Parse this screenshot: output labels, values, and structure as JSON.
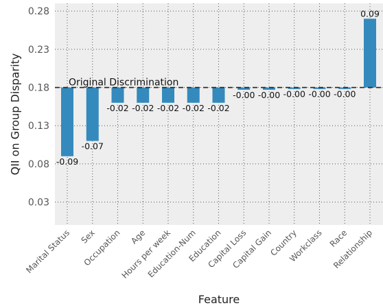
{
  "chart_data": {
    "type": "bar",
    "title": "",
    "xlabel": "Feature",
    "ylabel": "QII on Group Disparity",
    "categories": [
      "Marital Status",
      "Sex",
      "Occupation",
      "Age",
      "Hours per week",
      "Education-Num",
      "Education",
      "Capital Loss",
      "Capital Gain",
      "Country",
      "Workclass",
      "Race",
      "Relationship"
    ],
    "values": [
      -0.09,
      -0.07,
      -0.02,
      -0.02,
      -0.02,
      -0.02,
      -0.02,
      -0.003,
      -0.003,
      -0.002,
      -0.002,
      -0.002,
      0.09
    ],
    "value_labels": [
      "-0.09",
      "-0.07",
      "-0.02",
      "-0.02",
      "-0.02",
      "-0.02",
      "-0.02",
      "-0.00",
      "-0.00",
      "-0.00",
      "-0.00",
      "-0.00",
      "0.09"
    ],
    "baseline": 0.18,
    "ylim": [
      0.0,
      0.29
    ],
    "yticks": [
      0.03,
      0.08,
      0.13,
      0.18,
      0.23,
      0.28
    ],
    "ytick_labels": [
      "0.03",
      "0.08",
      "0.13",
      "0.18",
      "0.23",
      "0.28"
    ],
    "reference_line": {
      "value": 0.18,
      "label": "Original Discrimination",
      "style": "dashed"
    },
    "grid": "dotted",
    "colors": {
      "bar": "#348ABD",
      "background": "#EEEEEE",
      "grid": "#555555",
      "reference_line": "#222222"
    }
  }
}
